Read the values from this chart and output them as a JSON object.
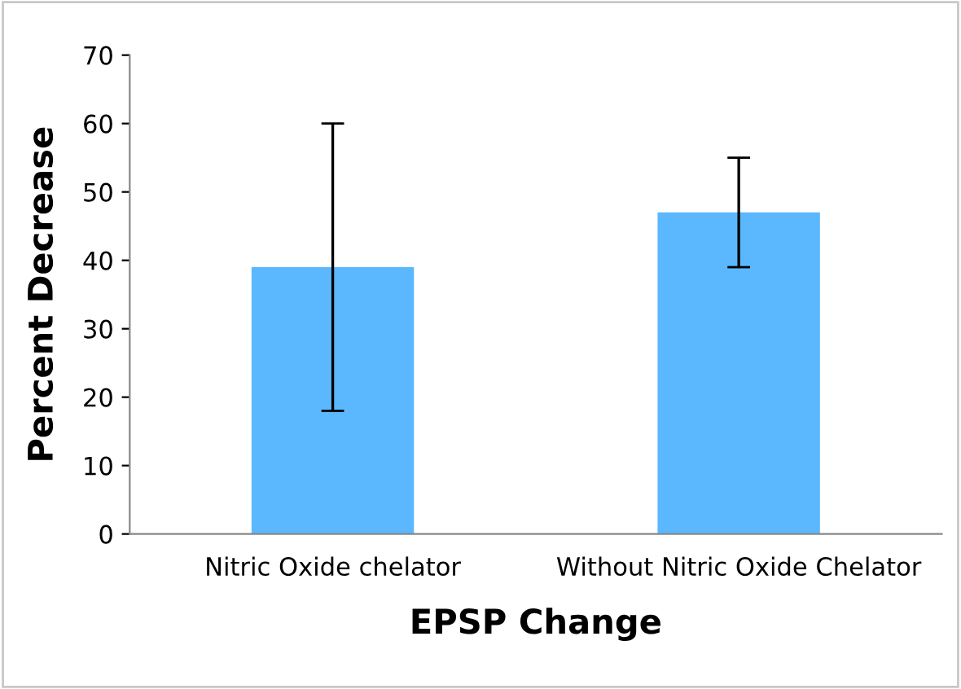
{
  "chart_data": {
    "type": "bar",
    "xlabel": "EPSP Change",
    "ylabel": "Percent Decrease",
    "categories": [
      "Nitric Oxide chelator",
      "Without Nitric Oxide Chelator"
    ],
    "values": [
      39,
      47
    ],
    "errors": [
      21,
      8
    ],
    "color": "#5bb8ff",
    "ylim": [
      0,
      70
    ],
    "yticks": [
      0,
      10,
      20,
      30,
      40,
      50,
      60,
      70
    ],
    "grid": false,
    "legend": false
  }
}
